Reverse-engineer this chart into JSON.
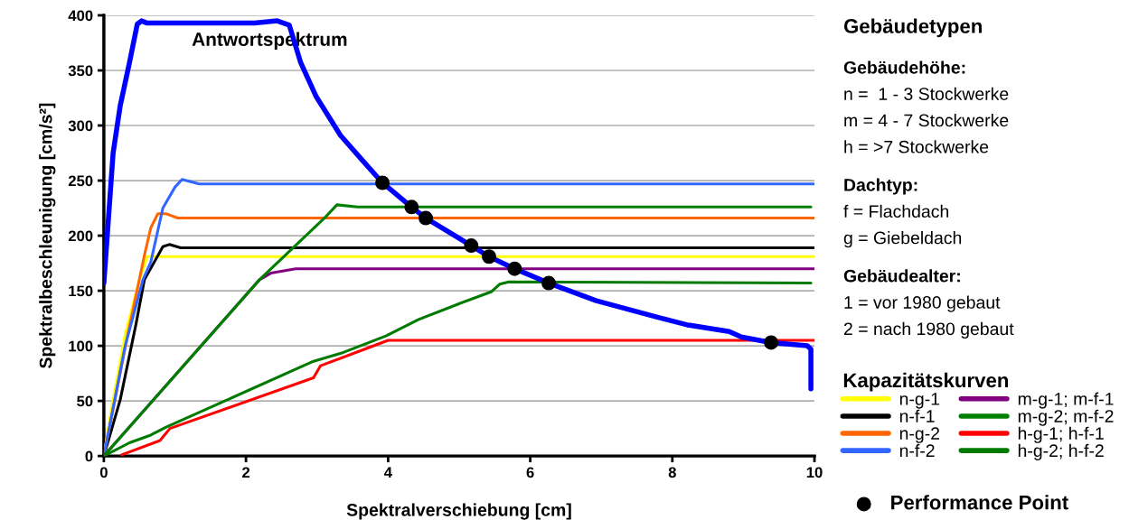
{
  "chart_data": {
    "type": "line",
    "xlabel": "Spektralverschiebung [cm]",
    "ylabel": "Spektralbeschleunigung [cm/s²]",
    "legend_title": "Kapazitätskurven",
    "xlim": [
      0,
      10
    ],
    "xticks": [
      0,
      2,
      4,
      6,
      8,
      10
    ],
    "ylim": [
      0,
      400
    ],
    "yticks": [
      0,
      50,
      100,
      150,
      200,
      250,
      300,
      350,
      400
    ],
    "grid": "y",
    "legend": "right",
    "marker": "none",
    "line_style": "solid",
    "annotations": [
      "Gebäudetypen",
      "Gebäudehöhe:",
      "n =  1 - 3 Stockwerke",
      "m = 4 - 7 Stockwerke",
      "h = >7 Stockwerke",
      "Dachtyp:",
      "f = Flachdach",
      "g = Giebeldach",
      "Gebäudealter:",
      "1 = vor 1980 gebaut",
      "2 = nach 1980 gebaut"
    ],
    "series": [
      {
        "name": "n-g-1",
        "color": "#ffff00",
        "x": [
          0,
          0.1,
          0.3,
          0.5,
          0.61,
          10
        ],
        "values": [
          0,
          40,
          110,
          160,
          181,
          181
        ]
      },
      {
        "name": "n-f-1",
        "color": "#000000",
        "x": [
          0,
          0.23,
          0.45,
          0.57,
          0.83,
          0.92,
          1.08,
          10
        ],
        "values": [
          0,
          51,
          119,
          160,
          190,
          192,
          189,
          189
        ]
      },
      {
        "name": "n-g-2",
        "color": "#ff6600",
        "x": [
          0,
          0.32,
          0.57,
          0.66,
          0.76,
          0.87,
          1.04,
          10
        ],
        "values": [
          0,
          105,
          182,
          207,
          220,
          220,
          216,
          216
        ]
      },
      {
        "name": "n-f-2",
        "color": "#3366ff",
        "x": [
          0,
          0.3,
          0.55,
          0.66,
          0.83,
          1.0,
          1.1,
          1.34,
          10
        ],
        "values": [
          0,
          100,
          160,
          176,
          225,
          244,
          251,
          247,
          247
        ]
      },
      {
        "name": "m-g-1; m-f-1",
        "color": "#800080",
        "x": [
          0,
          2.19,
          2.35,
          2.7,
          10
        ],
        "values": [
          0,
          160,
          166,
          170,
          170
        ]
      },
      {
        "name": "m-g-2; m-f-2",
        "color": "#008000",
        "x": [
          0,
          2.19,
          3.12,
          3.28,
          3.57,
          9.95
        ],
        "values": [
          0,
          160,
          217,
          228,
          226,
          226
        ]
      },
      {
        "name": "h-g-1; h-f-1",
        "color": "#ff0000",
        "x": [
          0.25,
          0.79,
          0.93,
          2.95,
          3.05,
          3.63,
          4.0,
          10
        ],
        "values": [
          1,
          14,
          25,
          71,
          82,
          96,
          105,
          105
        ]
      },
      {
        "name": "h-g-2; h-f-2",
        "color": "#007a00",
        "x": [
          0,
          0.36,
          0.66,
          0.87,
          2.95,
          3.37,
          3.97,
          4.43,
          4.99,
          5.45,
          5.57,
          5.7,
          9.95
        ],
        "values": [
          0,
          12,
          19,
          26,
          86,
          94,
          109,
          124,
          138,
          149,
          156,
          158,
          157
        ]
      },
      {
        "name": "Antwortspektrum",
        "color": "#0000ff",
        "x": [
          0,
          0.13,
          0.23,
          0.36,
          0.47,
          0.53,
          0.61,
          2.12,
          2.44,
          2.61,
          2.77,
          2.99,
          3.33,
          3.63,
          3.92,
          4.33,
          4.53,
          5.17,
          5.42,
          5.78,
          6.26,
          6.93,
          7.79,
          8.21,
          8.8,
          8.97,
          9.39,
          9.9,
          9.95,
          9.95
        ],
        "values": [
          157,
          275,
          318,
          357,
          392,
          395,
          393,
          393,
          395,
          391,
          357,
          326,
          291,
          269,
          248,
          226,
          216,
          191,
          181,
          170,
          157,
          141,
          126,
          119,
          113,
          108,
          103,
          100,
          97,
          61
        ]
      },
      {
        "name": "Performance Point",
        "type": "scatter",
        "marker": "circle",
        "color": "#000000",
        "x": [
          3.92,
          4.33,
          4.53,
          5.17,
          5.42,
          5.78,
          6.26,
          9.39
        ],
        "values": [
          248,
          226,
          216,
          191,
          181,
          170,
          157,
          103
        ]
      }
    ]
  }
}
